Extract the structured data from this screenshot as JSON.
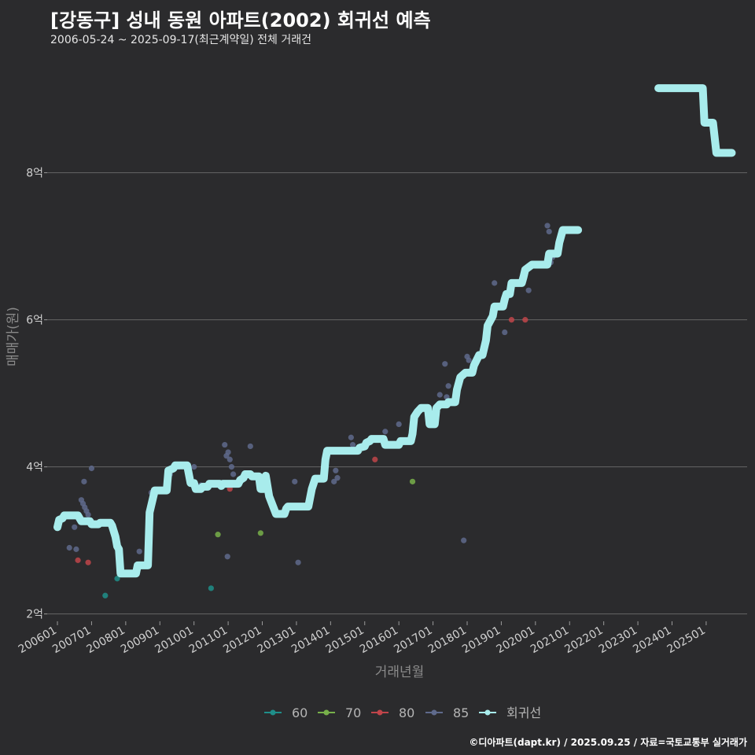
{
  "header": {
    "title": "[강동구] 성내 동원 아파트(2002) 회귀선 예측",
    "subtitle": "2006-05-24 ~ 2025-09-17(최근계약일) 전체 거래건"
  },
  "caption": "©디아파트(dapt.kr) / 2025.09.25 / 자료=국토교통부 실거래가",
  "colors": {
    "background": "#2b2b2d",
    "grid": "#666666",
    "s60": "#1f8f8a",
    "s70": "#78b04a",
    "s80": "#c0454a",
    "s85": "#5f6a8c",
    "regression": "#a8ecec"
  },
  "chart_data": {
    "type": "scatter",
    "xlabel": "거래년월",
    "ylabel": "매매가(원)",
    "ylim": [
      1.9,
      9.6
    ],
    "yticks": [
      2,
      4,
      6,
      8
    ],
    "ytick_labels": [
      "2억",
      "4억",
      "6억",
      "8억"
    ],
    "xlim": [
      2005.7,
      2026.2
    ],
    "xticks": [
      2006,
      2007,
      2008,
      2009,
      2010,
      2011,
      2012,
      2013,
      2014,
      2015,
      2016,
      2017,
      2018,
      2019,
      2020,
      2021,
      2022,
      2023,
      2024,
      2025
    ],
    "xtick_labels": [
      "200601",
      "200701",
      "200801",
      "200901",
      "201001",
      "201101",
      "201201",
      "201301",
      "201401",
      "201501",
      "201601",
      "201701",
      "201801",
      "201901",
      "202001",
      "202101",
      "202201",
      "202301",
      "202401",
      "202501"
    ],
    "grid": "horizontal",
    "legend_position": "bottom",
    "legend": [
      "60",
      "70",
      "80",
      "85",
      "회귀선"
    ],
    "series": [
      {
        "name": "60",
        "points": [
          [
            2007.4,
            2.25
          ],
          [
            2007.75,
            2.48
          ],
          [
            2010.5,
            2.35
          ]
        ]
      },
      {
        "name": "70",
        "points": [
          [
            2010.7,
            3.08
          ],
          [
            2011.95,
            3.1
          ],
          [
            2016.4,
            3.8
          ]
        ]
      },
      {
        "name": "80",
        "points": [
          [
            2006.6,
            2.73
          ],
          [
            2006.9,
            2.7
          ],
          [
            2011.05,
            3.7
          ],
          [
            2015.3,
            4.1
          ],
          [
            2019.3,
            6.0
          ],
          [
            2019.7,
            6.0
          ]
        ]
      },
      {
        "name": "85",
        "points": [
          [
            2006.35,
            2.9
          ],
          [
            2006.5,
            3.18
          ],
          [
            2006.55,
            2.88
          ],
          [
            2006.7,
            3.55
          ],
          [
            2006.75,
            3.5
          ],
          [
            2006.78,
            3.8
          ],
          [
            2006.8,
            3.45
          ],
          [
            2006.85,
            3.4
          ],
          [
            2006.9,
            3.35
          ],
          [
            2007.0,
            3.98
          ],
          [
            2008.4,
            2.85
          ],
          [
            2008.75,
            3.65
          ],
          [
            2009.3,
            3.9
          ],
          [
            2009.55,
            4.0
          ],
          [
            2010.0,
            4.0
          ],
          [
            2010.2,
            3.75
          ],
          [
            2010.9,
            4.3
          ],
          [
            2010.95,
            4.15
          ],
          [
            2011.0,
            4.2
          ],
          [
            2011.05,
            4.1
          ],
          [
            2011.1,
            4.0
          ],
          [
            2011.15,
            3.9
          ],
          [
            2011.5,
            3.9
          ],
          [
            2011.65,
            4.28
          ],
          [
            2010.98,
            2.78
          ],
          [
            2012.95,
            3.8
          ],
          [
            2013.05,
            2.7
          ],
          [
            2014.1,
            3.8
          ],
          [
            2014.2,
            3.85
          ],
          [
            2014.15,
            3.95
          ],
          [
            2014.6,
            4.4
          ],
          [
            2014.65,
            4.3
          ],
          [
            2015.6,
            4.48
          ],
          [
            2016.0,
            4.58
          ],
          [
            2017.2,
            4.98
          ],
          [
            2017.35,
            5.4
          ],
          [
            2017.4,
            4.95
          ],
          [
            2017.45,
            5.1
          ],
          [
            2018.0,
            5.5
          ],
          [
            2018.05,
            5.45
          ],
          [
            2018.8,
            6.5
          ],
          [
            2019.1,
            5.83
          ],
          [
            2019.8,
            6.4
          ],
          [
            2020.35,
            7.28
          ],
          [
            2020.4,
            7.2
          ],
          [
            2020.5,
            6.85
          ],
          [
            2020.45,
            6.78
          ],
          [
            2017.9,
            3.0
          ]
        ]
      }
    ],
    "regression": {
      "name": "회귀선",
      "points": [
        [
          2006.0,
          3.18
        ],
        [
          2006.05,
          3.28
        ],
        [
          2006.15,
          3.3
        ],
        [
          2006.2,
          3.34
        ],
        [
          2006.6,
          3.34
        ],
        [
          2006.7,
          3.26
        ],
        [
          2006.95,
          3.26
        ],
        [
          2007.0,
          3.22
        ],
        [
          2007.2,
          3.22
        ],
        [
          2007.25,
          3.24
        ],
        [
          2007.55,
          3.24
        ],
        [
          2007.6,
          3.2
        ],
        [
          2007.7,
          3.05
        ],
        [
          2007.75,
          2.92
        ],
        [
          2007.8,
          2.88
        ],
        [
          2007.85,
          2.55
        ],
        [
          2008.3,
          2.55
        ],
        [
          2008.35,
          2.66
        ],
        [
          2008.65,
          2.66
        ],
        [
          2008.7,
          3.38
        ],
        [
          2008.85,
          3.68
        ],
        [
          2009.2,
          3.68
        ],
        [
          2009.25,
          3.95
        ],
        [
          2009.4,
          3.98
        ],
        [
          2009.45,
          4.02
        ],
        [
          2009.8,
          4.02
        ],
        [
          2009.9,
          3.78
        ],
        [
          2010.0,
          3.78
        ],
        [
          2010.05,
          3.7
        ],
        [
          2010.2,
          3.7
        ],
        [
          2010.25,
          3.73
        ],
        [
          2010.4,
          3.73
        ],
        [
          2010.45,
          3.77
        ],
        [
          2010.75,
          3.77
        ],
        [
          2010.8,
          3.74
        ],
        [
          2010.85,
          3.77
        ],
        [
          2011.3,
          3.77
        ],
        [
          2011.35,
          3.82
        ],
        [
          2011.45,
          3.85
        ],
        [
          2011.5,
          3.9
        ],
        [
          2011.65,
          3.9
        ],
        [
          2011.7,
          3.87
        ],
        [
          2011.9,
          3.87
        ],
        [
          2011.95,
          3.7
        ],
        [
          2012.05,
          3.7
        ],
        [
          2012.1,
          3.88
        ],
        [
          2012.2,
          3.6
        ],
        [
          2012.4,
          3.36
        ],
        [
          2012.65,
          3.36
        ],
        [
          2012.7,
          3.43
        ],
        [
          2012.75,
          3.46
        ],
        [
          2013.35,
          3.46
        ],
        [
          2013.45,
          3.7
        ],
        [
          2013.55,
          3.84
        ],
        [
          2013.8,
          3.84
        ],
        [
          2013.85,
          4.1
        ],
        [
          2013.9,
          4.22
        ],
        [
          2014.8,
          4.22
        ],
        [
          2014.85,
          4.26
        ],
        [
          2015.0,
          4.28
        ],
        [
          2015.05,
          4.33
        ],
        [
          2015.15,
          4.35
        ],
        [
          2015.2,
          4.38
        ],
        [
          2015.55,
          4.38
        ],
        [
          2015.6,
          4.3
        ],
        [
          2016.0,
          4.3
        ],
        [
          2016.05,
          4.35
        ],
        [
          2016.35,
          4.35
        ],
        [
          2016.4,
          4.45
        ],
        [
          2016.45,
          4.68
        ],
        [
          2016.55,
          4.75
        ],
        [
          2016.65,
          4.8
        ],
        [
          2016.85,
          4.8
        ],
        [
          2016.9,
          4.58
        ],
        [
          2017.05,
          4.58
        ],
        [
          2017.1,
          4.8
        ],
        [
          2017.2,
          4.85
        ],
        [
          2017.4,
          4.85
        ],
        [
          2017.45,
          4.88
        ],
        [
          2017.65,
          4.88
        ],
        [
          2017.7,
          5.05
        ],
        [
          2017.8,
          5.22
        ],
        [
          2017.95,
          5.28
        ],
        [
          2018.15,
          5.28
        ],
        [
          2018.2,
          5.38
        ],
        [
          2018.35,
          5.52
        ],
        [
          2018.45,
          5.52
        ],
        [
          2018.55,
          5.72
        ],
        [
          2018.6,
          5.92
        ],
        [
          2018.75,
          6.05
        ],
        [
          2018.8,
          6.18
        ],
        [
          2019.05,
          6.18
        ],
        [
          2019.1,
          6.28
        ],
        [
          2019.15,
          6.35
        ],
        [
          2019.25,
          6.35
        ],
        [
          2019.3,
          6.5
        ],
        [
          2019.6,
          6.5
        ],
        [
          2019.65,
          6.58
        ],
        [
          2019.7,
          6.68
        ],
        [
          2019.9,
          6.75
        ],
        [
          2020.35,
          6.75
        ],
        [
          2020.4,
          6.9
        ],
        [
          2020.65,
          6.9
        ],
        [
          2020.7,
          7.05
        ],
        [
          2020.8,
          7.22
        ],
        [
          2021.25,
          7.22
        ]
      ]
    },
    "regression_forecast": {
      "points": [
        [
          2023.6,
          9.15
        ],
        [
          2024.9,
          9.15
        ],
        [
          2024.95,
          8.68
        ],
        [
          2025.2,
          8.68
        ],
        [
          2025.3,
          8.27
        ],
        [
          2025.75,
          8.27
        ]
      ]
    }
  }
}
